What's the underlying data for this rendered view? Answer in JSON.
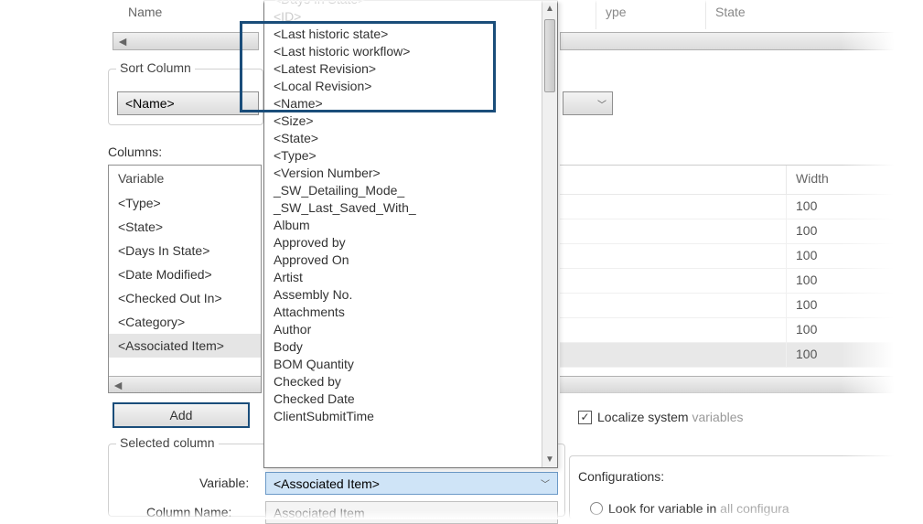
{
  "top": {
    "name_header": "Name",
    "type_header": "ype",
    "state_header": "State"
  },
  "sort": {
    "label": "Sort Column",
    "value": "<Name>"
  },
  "columns_label": "Columns:",
  "columns_header": "Variable",
  "columns": [
    "<Type>",
    "<State>",
    "<Days In State>",
    "<Date Modified>",
    "<Checked Out In>",
    "<Category>",
    "<Associated Item>"
  ],
  "columns_selected_index": 6,
  "add_label": "Add",
  "selected_col": {
    "label": "Selected column",
    "variable_label": "Variable:",
    "variable_value": "<Associated Item>",
    "colname_label": "Column Name:",
    "colname_value": "Associated Item"
  },
  "dropdown_items": [
    "<Days In State>",
    "<ID>",
    "<Last historic state>",
    "<Last historic workflow>",
    "<Latest Revision>",
    "<Local Revision>",
    "<Name>",
    "<Size>",
    "<State>",
    "<Type>",
    "<Version Number>",
    "_SW_Detailing_Mode_",
    "_SW_Last_Saved_With_",
    "Album",
    "Approved by",
    "Approved On",
    "Artist",
    "Assembly No.",
    "Attachments",
    "Author",
    "Body",
    "BOM Quantity",
    "Checked by",
    "Checked Date",
    "ClientSubmitTime"
  ],
  "right_grid": {
    "width_header": "Width",
    "widths": [
      "100",
      "100",
      "100",
      "100",
      "100",
      "100",
      "100"
    ],
    "selected_index": 6
  },
  "localize": {
    "checked": true,
    "text_dark": "Localize system",
    "text_light": " variables"
  },
  "config": {
    "label": "Configurations:",
    "radio_dark": "Look for variable in",
    "radio_light": " all configura"
  },
  "colors": {
    "highlight_border": "#1a4d7a",
    "dropdown_sel_bg": "#cfe4f7"
  }
}
